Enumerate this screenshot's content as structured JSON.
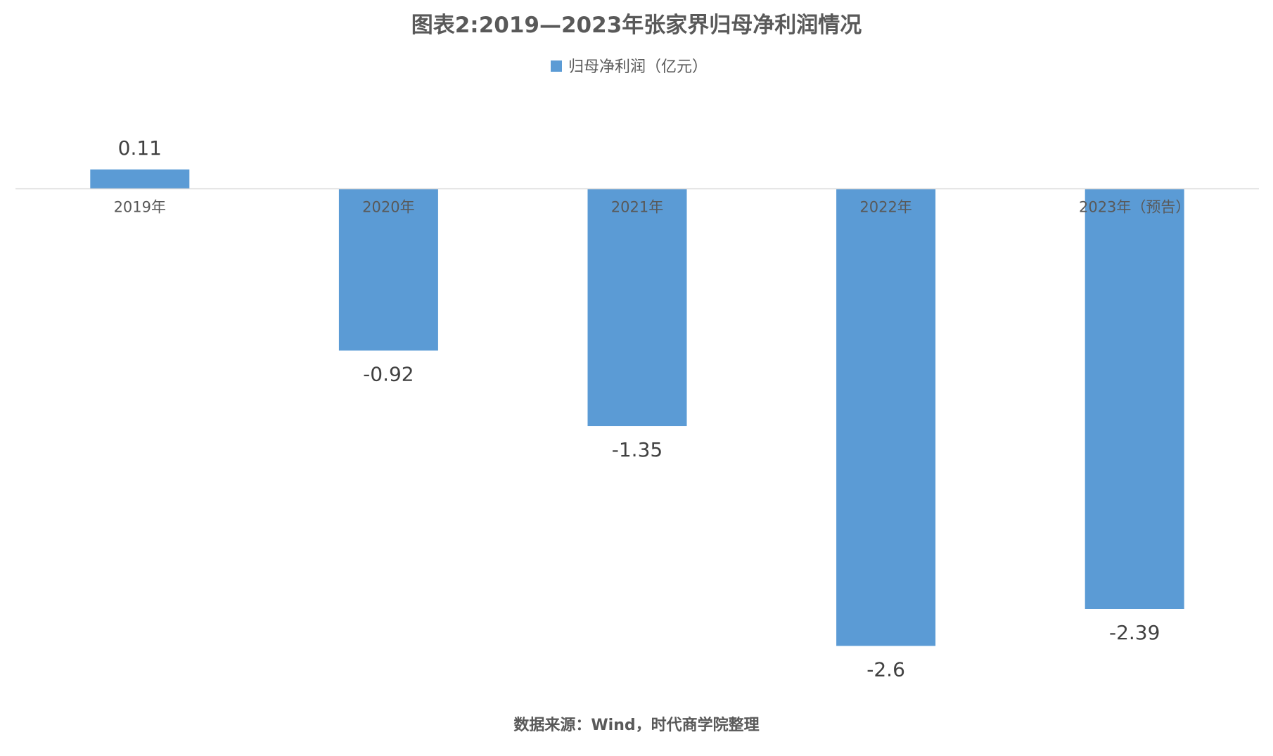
{
  "chart_data": {
    "type": "bar",
    "title": "图表2:2019—2023年张家界归母净利润情况",
    "categories": [
      "2019年",
      "2020年",
      "2021年",
      "2022年",
      "2023年（预告）"
    ],
    "series": [
      {
        "name": "归母净利润（亿元）",
        "values": [
          0.11,
          -0.92,
          -1.35,
          -2.6,
          -2.39
        ],
        "value_labels": [
          "0.11",
          "-0.92",
          "-1.35",
          "-2.6",
          "-2.39"
        ],
        "color": "#5B9BD5"
      }
    ],
    "ylim": [
      -2.6,
      0.11
    ],
    "xlabel": "",
    "ylabel": "",
    "grid": false,
    "legend_position": "top",
    "source": "数据来源：Wind，时代商学院整理"
  },
  "colors": {
    "bar": "#5B9BD5",
    "axis": "#D9D9D9",
    "title": "#595959",
    "tick": "#595959",
    "label": "#404040",
    "source": "#595959"
  }
}
